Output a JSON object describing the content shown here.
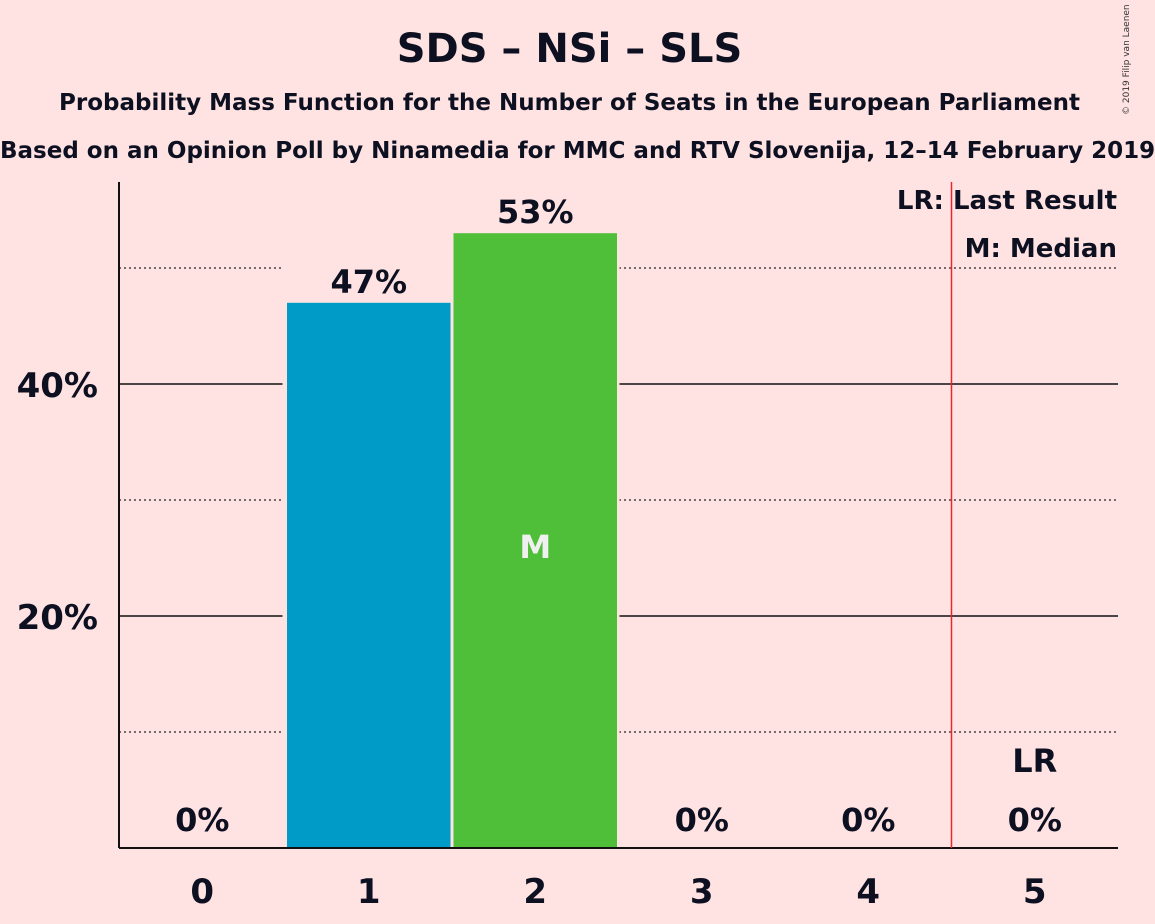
{
  "header": {
    "title": "SDS – NSi – SLS",
    "subtitle": "Probability Mass Function for the Number of Seats in the European Parliament",
    "source": "Based on an Opinion Poll by Ninamedia for MMC and RTV Slovenija, 12–14 February 2019"
  },
  "copyright": "© 2019 Filip van Laenen",
  "legend": {
    "last_result": "LR: Last Result",
    "median": "M: Median"
  },
  "colors": {
    "background": "#FFE2E2",
    "bar_blue": "#009BC7",
    "bar_green": "#4FBE39",
    "last_result_line": "#E8262B",
    "text": "#0d1020"
  },
  "chart_data": {
    "type": "bar",
    "categories": [
      "0",
      "1",
      "2",
      "3",
      "4",
      "5"
    ],
    "values": [
      0,
      47,
      53,
      0,
      0,
      0
    ],
    "value_labels": [
      "0%",
      "47%",
      "53%",
      "0%",
      "0%",
      "0%"
    ],
    "bar_colors": [
      "#009BC7",
      "#009BC7",
      "#4FBE39",
      "#009BC7",
      "#009BC7",
      "#009BC7"
    ],
    "ylim": [
      0,
      57
    ],
    "yticks": [
      {
        "value": 20,
        "label": "20%"
      },
      {
        "value": 40,
        "label": "40%"
      }
    ],
    "minor_gridlines": [
      10,
      30,
      50
    ],
    "median_category": "2",
    "median_marker": "M",
    "last_result_category": "5",
    "last_result_marker": "LR",
    "last_result_line_at": 4.5,
    "xlabel": "",
    "ylabel": ""
  }
}
